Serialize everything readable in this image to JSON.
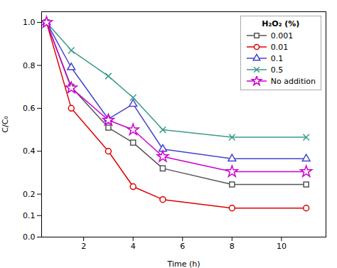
{
  "chart_data": {
    "type": "line",
    "x": [
      0.5,
      1.5,
      3,
      4,
      5.2,
      8,
      11
    ],
    "series": [
      {
        "name": "0.001",
        "color": "#555555",
        "marker": "square",
        "values": [
          1.0,
          0.7,
          0.51,
          0.44,
          0.32,
          0.245,
          0.245
        ]
      },
      {
        "name": "0.01",
        "color": "#dd0000",
        "marker": "circle",
        "values": [
          1.0,
          0.6,
          0.4,
          0.235,
          0.175,
          0.135,
          0.135
        ]
      },
      {
        "name": "0.1",
        "color": "#4444cc",
        "marker": "triangle",
        "values": [
          1.0,
          0.79,
          0.55,
          0.62,
          0.41,
          0.365,
          0.365
        ]
      },
      {
        "name": "0.5",
        "color": "#3a9a8a",
        "marker": "x",
        "values": [
          1.0,
          0.87,
          0.75,
          0.65,
          0.5,
          0.465,
          0.465
        ]
      },
      {
        "name": "No addition",
        "color": "#cc00cc",
        "marker": "star",
        "values": [
          1.0,
          0.695,
          0.545,
          0.5,
          0.375,
          0.305,
          0.305
        ]
      }
    ],
    "x_label": "Time (h)",
    "y_label": "C/C₀",
    "legend_title": "H₂O₂ (%)",
    "legend": "upper right",
    "xlim": [
      0.3,
      11.8
    ],
    "xticks": [
      2,
      4,
      6,
      8,
      10
    ],
    "ylim": [
      0.0,
      1.05
    ],
    "yticks": [
      {
        "value": 0,
        "label": "0.0"
      },
      0.1,
      0.2,
      0.4,
      0.6,
      0.8,
      {
        "value": 1,
        "label": "1.0"
      }
    ],
    "grid": false
  }
}
